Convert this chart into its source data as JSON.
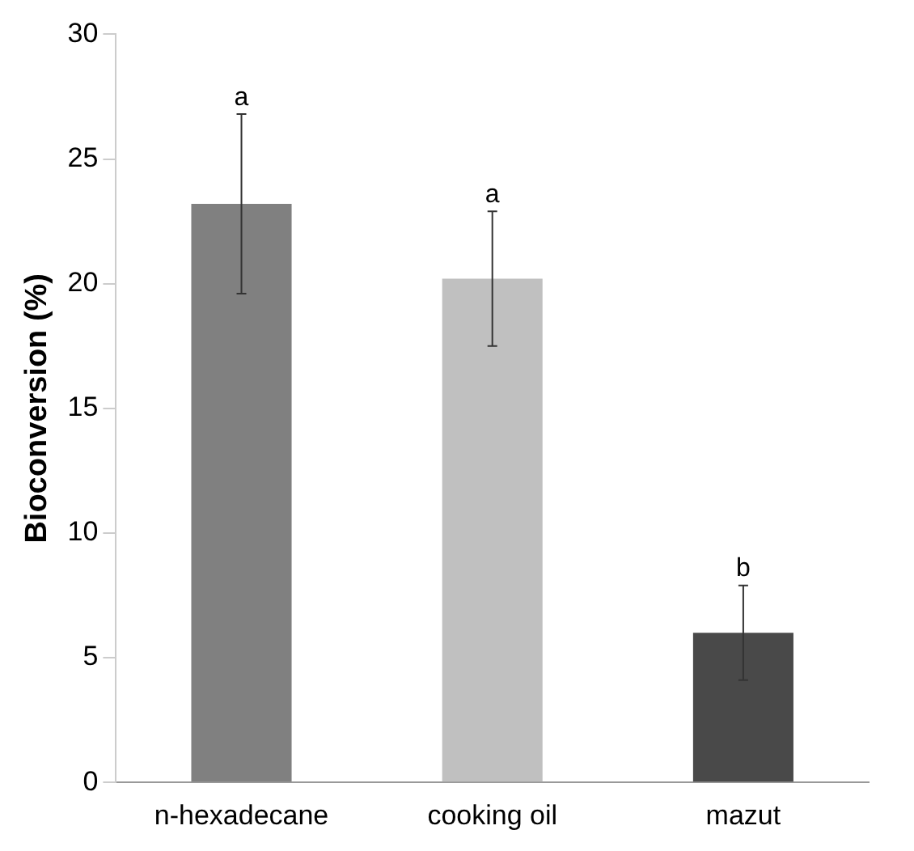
{
  "chart_data": {
    "type": "bar",
    "ylabel": "Bioconversion (%)",
    "categories": [
      "n-hexadecane",
      "cooking oil",
      "mazut"
    ],
    "values": [
      23.2,
      20.2,
      6.0
    ],
    "colors": [
      "#808080",
      "#c0c0c0",
      "#494949"
    ],
    "errors": [
      3.6,
      2.7,
      1.9
    ],
    "ylim": [
      0,
      30
    ],
    "yticks": [
      0,
      5,
      10,
      15,
      20,
      25,
      30
    ],
    "grid": false,
    "legend": false,
    "annotations": [
      {
        "text": "a",
        "x": "n-hexadecane",
        "y": 26.8
      },
      {
        "text": "a",
        "x": "cooking oil",
        "y": 22.9
      },
      {
        "text": "b",
        "x": "mazut",
        "y": 7.9
      }
    ]
  }
}
